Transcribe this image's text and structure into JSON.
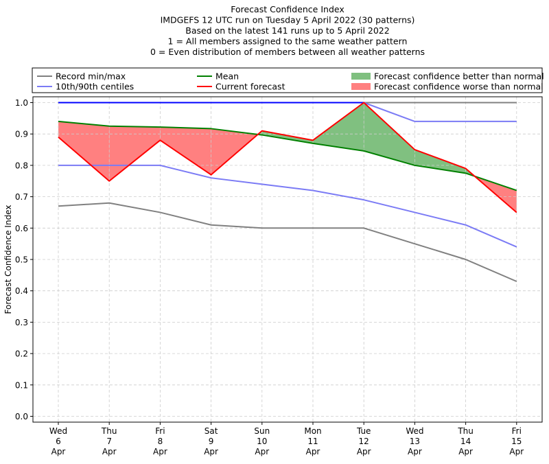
{
  "chart_data": {
    "type": "line",
    "title": [
      "Forecast Confidence Index",
      "IMDGEFS 12 UTC run on Tuesday 5 April 2022 (30 patterns)",
      "Based on the latest 141 runs up to 5 April 2022",
      "1 = All members assigned to the same weather pattern",
      "0 = Even distribution of members between all weather patterns"
    ],
    "ylabel": "Forecast Confidence Index",
    "xlabel": "",
    "ylim": [
      0,
      1
    ],
    "yticks": [
      "0.0",
      "0.1",
      "0.2",
      "0.3",
      "0.4",
      "0.5",
      "0.6",
      "0.7",
      "0.8",
      "0.9",
      "1.0"
    ],
    "categories": [
      [
        "Wed",
        "6",
        "Apr"
      ],
      [
        "Thu",
        "7",
        "Apr"
      ],
      [
        "Fri",
        "8",
        "Apr"
      ],
      [
        "Sat",
        "9",
        "Apr"
      ],
      [
        "Sun",
        "10",
        "Apr"
      ],
      [
        "Mon",
        "11",
        "Apr"
      ],
      [
        "Tue",
        "12",
        "Apr"
      ],
      [
        "Wed",
        "13",
        "Apr"
      ],
      [
        "Thu",
        "14",
        "Apr"
      ],
      [
        "Fri",
        "15",
        "Apr"
      ]
    ],
    "grid": true,
    "legend_position": "top",
    "legend": [
      {
        "label": "Record min/max",
        "kind": "line",
        "color": "#808080"
      },
      {
        "label": "Mean",
        "kind": "line",
        "color": "#008000"
      },
      {
        "label": "Forecast confidence better than normal",
        "kind": "patch",
        "color": "#80c080"
      },
      {
        "label": "10th/90th centiles",
        "kind": "line",
        "color": "#7b7bf5"
      },
      {
        "label": "Current forecast",
        "kind": "line",
        "color": "#ff0000"
      },
      {
        "label": "Forecast confidence worse than normal",
        "kind": "patch",
        "color": "#ff8080"
      }
    ],
    "series": {
      "record_max": [
        1.0,
        1.0,
        1.0,
        1.0,
        1.0,
        1.0,
        1.0,
        1.0,
        1.0,
        1.0
      ],
      "record_min": [
        0.67,
        0.68,
        0.65,
        0.61,
        0.6,
        0.6,
        0.6,
        0.55,
        0.5,
        0.43
      ],
      "p90": [
        1.0,
        1.0,
        1.0,
        1.0,
        1.0,
        1.0,
        1.0,
        0.94,
        0.94,
        0.94
      ],
      "p10": [
        0.8,
        0.8,
        0.8,
        0.76,
        0.74,
        0.72,
        0.69,
        0.65,
        0.61,
        0.54
      ],
      "mean": [
        0.94,
        0.925,
        0.922,
        0.917,
        0.897,
        0.87,
        0.846,
        0.8,
        0.775,
        0.72
      ],
      "current": [
        0.89,
        0.75,
        0.88,
        0.77,
        0.91,
        0.88,
        1.0,
        0.85,
        0.79,
        0.65
      ]
    },
    "colors": {
      "record": "#808080",
      "centile": "#7b7bf5",
      "max_line": "#0000ff",
      "mean": "#008000",
      "current": "#ff0000",
      "better_fill": "#80c080",
      "worse_fill": "#ff8080",
      "grid": "#cccccc"
    }
  }
}
